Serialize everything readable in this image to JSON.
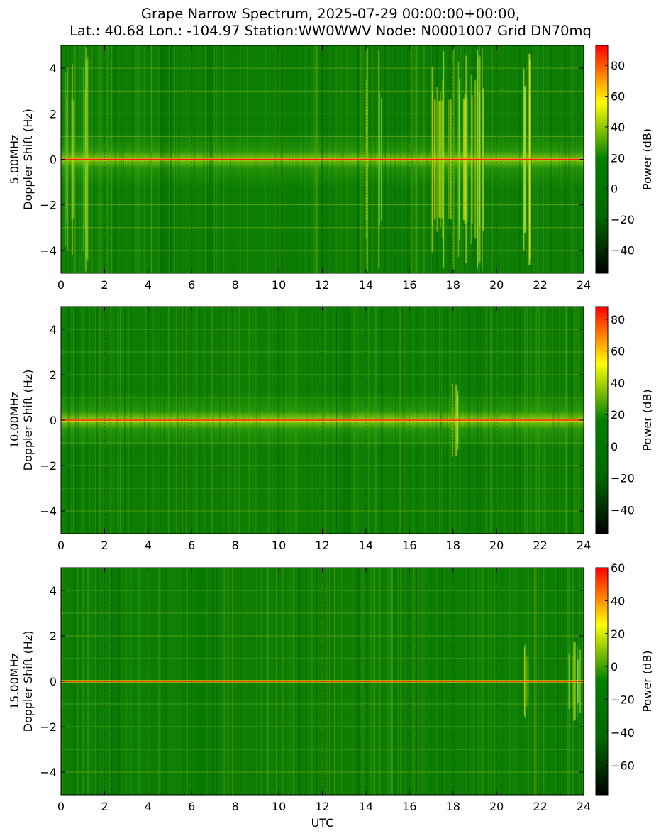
{
  "title_lines": [
    "Grape Narrow Spectrum, 2025-07-29 00:00:00+00:00,",
    "Lat.: 40.68 Lon.: -104.97 Station:WW0WWV Node: N0001007 Grid DN70mq"
  ],
  "chart_data": [
    {
      "type": "heatmap",
      "ylabel_lines": [
        "5.00MHz",
        "Doppler Shift (Hz)"
      ],
      "xlabel": "",
      "xlim": [
        0,
        24
      ],
      "ylim": [
        -5,
        5
      ],
      "xticks": [
        0,
        2,
        4,
        6,
        8,
        10,
        12,
        14,
        16,
        18,
        20,
        22,
        24
      ],
      "yticks": [
        -4,
        -2,
        0,
        2,
        4
      ],
      "colorbar": {
        "label": "Power (dB)",
        "range": [
          -55,
          93
        ],
        "ticks": [
          -40,
          -20,
          0,
          20,
          40,
          60,
          80
        ]
      },
      "dominant_line_hz": 0,
      "bright_intervals_utc": [
        [
          0.2,
          0.6
        ],
        [
          1.0,
          1.4
        ],
        [
          13.9,
          14.1
        ],
        [
          14.5,
          14.7
        ],
        [
          17.0,
          19.4
        ],
        [
          21.1,
          21.5
        ]
      ]
    },
    {
      "type": "heatmap",
      "ylabel_lines": [
        "10.00MHz",
        "Doppler Shift (Hz)"
      ],
      "xlabel": "",
      "xlim": [
        0,
        24
      ],
      "ylim": [
        -5,
        5
      ],
      "xticks": [
        0,
        2,
        4,
        6,
        8,
        10,
        12,
        14,
        16,
        18,
        20,
        22,
        24
      ],
      "yticks": [
        -4,
        -2,
        0,
        2,
        4
      ],
      "colorbar": {
        "label": "Power (dB)",
        "range": [
          -55,
          88
        ],
        "ticks": [
          -40,
          -20,
          0,
          20,
          40,
          60,
          80
        ]
      },
      "dominant_line_hz": 0,
      "bright_intervals_utc": [
        [
          17.9,
          18.2
        ]
      ]
    },
    {
      "type": "heatmap",
      "ylabel_lines": [
        "15.00MHz",
        "Doppler Shift (Hz)"
      ],
      "xlabel": "UTC",
      "xlim": [
        0,
        24
      ],
      "ylim": [
        -5,
        5
      ],
      "xticks": [
        0,
        2,
        4,
        6,
        8,
        10,
        12,
        14,
        16,
        18,
        20,
        22,
        24
      ],
      "yticks": [
        -4,
        -2,
        0,
        2,
        4
      ],
      "colorbar": {
        "label": "Power (dB)",
        "range": [
          -78,
          60
        ],
        "ticks": [
          -60,
          -40,
          -20,
          0,
          20,
          40,
          60
        ]
      },
      "dominant_line_hz": 0,
      "bright_intervals_utc": [
        [
          21.2,
          21.5
        ],
        [
          23.2,
          23.8
        ]
      ]
    }
  ],
  "colormap": [
    "#000000",
    "#006600",
    "#008000",
    "#ffff00",
    "#ff0000"
  ]
}
